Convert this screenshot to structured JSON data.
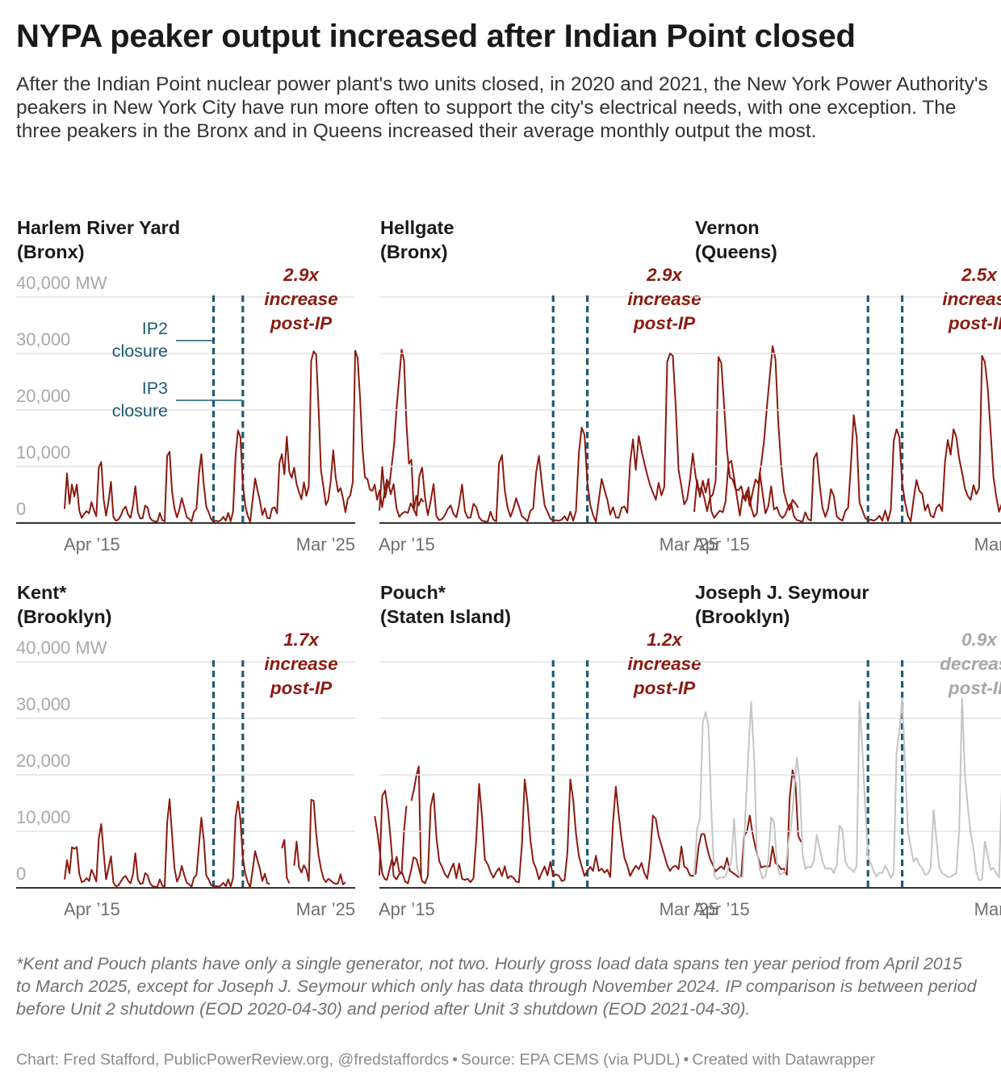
{
  "header": {
    "title": "NYPA peaker output increased after Indian Point closed",
    "description": "After the Indian Point nuclear power plant's two units closed, in 2020 and 2021, the New York Power Authority's peakers in New York City have run more often to support the city's electrical needs, with one exception. The three peakers in the Bronx and in Queens increased their average monthly output the most."
  },
  "footer": {
    "footnote": "*Kent and Pouch plants have only a single generator, not two. Hourly gross load data spans ten year period from April 2015 to March 2025, except for Joseph J. Seymour which only has data through November 2024. IP comparison is between period before Unit 2 shutdown (EOD 2020-04-30) and period after Unit 3 shutdown (EOD 2021-04-30).",
    "credit_parts": [
      "Chart: Fred Stafford, PublicPowerReview.org, @fredstaffordcs",
      "Source: EPA CEMS (via PUDL)",
      "Created with Datawrapper"
    ],
    "separator": "•"
  },
  "colors": {
    "increase_line": "#8b1a10",
    "decrease_line": "#c4c4c4",
    "decrease_text": "#a6a6a6",
    "marker": "#1d5b73",
    "grid": "#e2e2e2",
    "axis_text": "#a9a9a9"
  },
  "chart_data": {
    "type": "line",
    "layout": "small-multiples",
    "unit": "MW",
    "x_range": [
      "2015-04",
      "2025-03"
    ],
    "x_ticks": [
      "Apr ’15",
      "Mar ’25"
    ],
    "y_range": [
      0,
      40000
    ],
    "y_ticks": [
      0,
      10000,
      20000,
      30000,
      40000
    ],
    "y_tick_labels": [
      "0",
      "10,000",
      "20,000",
      "30,000",
      "40,000 MW"
    ],
    "markers": [
      {
        "label": "IP2\nclosure",
        "date": "2020-04-30"
      },
      {
        "label": "IP3\nclosure",
        "date": "2021-04-30"
      }
    ],
    "panels": [
      {
        "name": "Harlem River Yard",
        "borough": "(Bronx)",
        "trend": "increase",
        "annotation": [
          "2.9x",
          "increase",
          "post-IP"
        ],
        "values": [
          2500,
          8800,
          3400,
          6800,
          4700,
          6800,
          2200,
          900,
          1600,
          2100,
          1700,
          3700,
          2300,
          1200,
          9800,
          10800,
          4200,
          1300,
          3900,
          7300,
          1100,
          400,
          600,
          1300,
          2400,
          2900,
          1500,
          900,
          3100,
          6500,
          1900,
          800,
          900,
          3100,
          2700,
          900,
          400,
          300,
          200,
          1800,
          500,
          300,
          11900,
          12600,
          5600,
          2600,
          1000,
          2400,
          4400,
          2800,
          1100,
          700,
          300,
          2000,
          2500,
          8600,
          12200,
          6800,
          2900,
          1900,
          700,
          300,
          400,
          300,
          500,
          1100,
          400,
          1800,
          300,
          2000,
          11800,
          16400,
          15200,
          7000,
          3000,
          1300,
          200,
          4000,
          7900,
          5800,
          3900,
          1400,
          2600,
          900,
          800,
          2600,
          2800,
          1700,
          10700,
          12200,
          8600,
          15300,
          9100,
          8000,
          9800,
          6900,
          5500,
          4200,
          7200,
          4800,
          6500,
          28700,
          30400,
          29800,
          20500,
          9300,
          6400,
          3200,
          4100,
          7500,
          12900,
          8100,
          5500,
          6200,
          4400,
          1900,
          4300,
          4900,
          7300,
          30500,
          29200,
          22000,
          13100,
          8100,
          7800,
          5900,
          5700,
          6800,
          4100,
          5800,
          2800,
          5400,
          7700,
          6800,
          10400,
          14200,
          20600,
          25600,
          30700,
          28800,
          17600,
          10500,
          11200,
          2300,
          4800,
          3100,
          4300,
          3700
        ]
      },
      {
        "name": "Hellgate",
        "borough": "(Bronx)",
        "trend": "increase",
        "annotation": [
          "2.9x",
          "increase",
          "post-IP"
        ],
        "values": [
          2200,
          9900,
          4500,
          7200,
          5100,
          6900,
          2600,
          1100,
          1700,
          2000,
          1800,
          3500,
          2500,
          1300,
          8300,
          9800,
          4500,
          1400,
          3900,
          6900,
          1200,
          500,
          700,
          1400,
          2500,
          3100,
          1600,
          1000,
          3300,
          6800,
          2100,
          900,
          1000,
          3400,
          2800,
          1000,
          400,
          300,
          200,
          2000,
          600,
          300,
          10600,
          12000,
          5800,
          2700,
          1100,
          2500,
          4400,
          2900,
          1200,
          800,
          300,
          2200,
          2600,
          8900,
          11900,
          7100,
          3100,
          2000,
          800,
          400,
          500,
          400,
          600,
          1200,
          400,
          2000,
          400,
          2100,
          12400,
          16900,
          15600,
          7200,
          3200,
          1400,
          200,
          4100,
          7800,
          5900,
          4100,
          1500,
          2800,
          1000,
          900,
          2700,
          2900,
          1800,
          10800,
          14800,
          9400,
          15400,
          12800,
          10600,
          8500,
          6700,
          5400,
          4100,
          7100,
          4900,
          6400,
          28500,
          30000,
          29600,
          20600,
          9400,
          6500,
          3300,
          4200,
          7600,
          12300,
          8200,
          5700,
          6300,
          4500,
          2100,
          4500,
          5000,
          7400,
          29400,
          28300,
          20600,
          12800,
          8100,
          7700,
          6000,
          5800,
          6500,
          4300,
          5700,
          3000,
          5500,
          7700,
          7000,
          10400,
          14600,
          20500,
          25900,
          31300,
          29000,
          17800,
          10400,
          5500,
          3600,
          2300,
          4100,
          3500,
          2700
        ]
      },
      {
        "name": "Vernon",
        "borough": "(Queens)",
        "trend": "increase",
        "annotation": [
          "2.5x",
          "increase",
          "post-IP"
        ],
        "values": [
          2000,
          7600,
          4600,
          7500,
          5400,
          7800,
          2100,
          900,
          1600,
          2200,
          1900,
          3800,
          10500,
          11000,
          8000,
          4600,
          1300,
          4900,
          3900,
          6300,
          2700,
          1100,
          1700,
          9000,
          5200,
          1700,
          3000,
          6500,
          2400,
          2800,
          1400,
          900,
          1500,
          2900,
          3500,
          1200,
          500,
          400,
          200,
          1900,
          700,
          400,
          11400,
          12400,
          6900,
          2700,
          1100,
          2600,
          6000,
          4800,
          1200,
          700,
          400,
          2100,
          2700,
          10300,
          19100,
          15200,
          3600,
          2300,
          900,
          500,
          600,
          400,
          700,
          1300,
          400,
          2200,
          400,
          2300,
          14500,
          16600,
          15200,
          7000,
          3600,
          1300,
          300,
          4300,
          7600,
          5700,
          5200,
          2200,
          3300,
          1300,
          1000,
          2700,
          3300,
          2100,
          10800,
          14700,
          12100,
          16600,
          15200,
          11400,
          8900,
          6100,
          4800,
          4100,
          6700,
          5100,
          6200,
          29600,
          28500,
          24000,
          16300,
          8200,
          4700,
          2000,
          3500,
          5900,
          10400,
          6800,
          5100,
          4500,
          3700,
          1500,
          3700,
          4000,
          7700,
          30900,
          25800,
          20100,
          19800,
          null,
          null,
          null,
          null,
          null,
          null,
          null,
          null,
          null,
          null,
          null,
          2400,
          6800,
          7700,
          7600,
          11600,
          17300,
          24300,
          31500,
          26900,
          16300,
          12700,
          12400,
          4300,
          3400,
          4900,
          10900,
          2700
        ]
      },
      {
        "name": "Kent*",
        "borough": "(Brooklyn)",
        "trend": "increase",
        "annotation": [
          "1.7x",
          "increase",
          "post-IP"
        ],
        "values": [
          1500,
          4900,
          2600,
          7200,
          6900,
          7200,
          2500,
          1000,
          1200,
          1700,
          1200,
          3200,
          2300,
          1100,
          8800,
          11300,
          6300,
          1500,
          3500,
          5600,
          900,
          300,
          400,
          1100,
          1800,
          2100,
          1300,
          800,
          2400,
          6100,
          1500,
          700,
          800,
          2600,
          2200,
          800,
          300,
          200,
          200,
          1500,
          400,
          200,
          11600,
          15700,
          9400,
          3500,
          1100,
          2000,
          3900,
          2300,
          900,
          600,
          200,
          1800,
          2300,
          7400,
          12400,
          8600,
          2200,
          1500,
          500,
          300,
          300,
          200,
          400,
          900,
          300,
          1500,
          200,
          1700,
          12500,
          15300,
          12100,
          5400,
          2500,
          1000,
          100,
          3100,
          6500,
          4900,
          3300,
          1200,
          2500,
          800,
          700,
          null,
          null,
          null,
          null,
          7000,
          8500,
          1800,
          800,
          null,
          3900,
          8200,
          3700,
          2700,
          4000,
          3200,
          1200,
          15600,
          15400,
          9700,
          5800,
          3400,
          1700,
          1000,
          1600,
          1300,
          900,
          700,
          800,
          2400,
          600,
          1000,
          null,
          null,
          null,
          null,
          null,
          null,
          null,
          null,
          null,
          null,
          null,
          12700,
          10100,
          6600,
          2700,
          1600,
          1400,
          3200,
          5000,
          4000,
          5500,
          2900,
          2500,
          10100,
          14500,
          null,
          15400,
          17300,
          19700,
          21500,
          1700
        ]
      },
      {
        "name": "Pouch*",
        "borough": "(Staten Island)",
        "trend": "increase",
        "annotation": [
          "1.2x",
          "increase",
          "post-IP"
        ],
        "values": [
          2200,
          16300,
          17200,
          13700,
          8300,
          2100,
          1500,
          2500,
          2700,
          1100,
          800,
          2800,
          5400,
          5100,
          3200,
          1200,
          800,
          2100,
          14400,
          16700,
          9000,
          4700,
          3700,
          2400,
          1800,
          3200,
          4300,
          1700,
          4300,
          1600,
          1400,
          1600,
          1000,
          1700,
          8700,
          18400,
          12600,
          5000,
          4200,
          2800,
          1800,
          2800,
          3500,
          2100,
          3800,
          1700,
          2100,
          1800,
          1100,
          1000,
          7600,
          19200,
          14900,
          8400,
          4600,
          3400,
          1500,
          2700,
          3800,
          2200,
          4600,
          2000,
          2400,
          2100,
          1200,
          1400,
          6200,
          19200,
          15700,
          9600,
          5600,
          3800,
          2100,
          3000,
          3700,
          3000,
          5700,
          3000,
          3400,
          2700,
          3200,
          1900,
          11700,
          17900,
          12800,
          8600,
          5300,
          3900,
          2100,
          3100,
          3900,
          3300,
          4400,
          2600,
          1600,
          5700,
          12800,
          12200,
          9200,
          7500,
          5800,
          4000,
          3000,
          3700,
          3900,
          3300,
          7300,
          3800,
          3400,
          2200,
          2100,
          2500,
          7200,
          9500,
          9500,
          7100,
          5200,
          4100,
          2900,
          3400,
          3800,
          3300,
          5300,
          3000,
          2700,
          2300,
          1900,
          2000,
          9100,
          10000,
          12800,
          9500,
          7100,
          5300,
          3600,
          3800,
          3800,
          3800,
          7300,
          4400,
          4000,
          3300,
          3400,
          2300,
          15900,
          20800,
          18700,
          9200,
          8100
        ]
      },
      {
        "name": "Joseph J. Seymour",
        "borough": "(Brooklyn)",
        "trend": "decrease",
        "annotation": [
          "0.9x",
          "decrease",
          "post-IP"
        ],
        "values": [
          2000,
          10300,
          12300,
          29300,
          31100,
          28700,
          13800,
          2300,
          1500,
          1900,
          1800,
          2000,
          3600,
          4400,
          12200,
          3600,
          1800,
          2000,
          13500,
          24100,
          32900,
          23300,
          6800,
          3200,
          1700,
          2000,
          5100,
          12500,
          11700,
          4400,
          2300,
          2600,
          2900,
          8000,
          10900,
          16700,
          23100,
          18700,
          6100,
          3300,
          3800,
          3600,
          4700,
          9400,
          7000,
          4700,
          3400,
          3400,
          3500,
          2600,
          4000,
          11000,
          10300,
          4700,
          3700,
          3300,
          2800,
          3900,
          33000,
          24600,
          14300,
          5600,
          4300,
          2900,
          2000,
          2700,
          2600,
          3900,
          3000,
          1700,
          2800,
          23900,
          27700,
          33600,
          21900,
          10100,
          7200,
          4600,
          5300,
          4100,
          3500,
          2300,
          2500,
          3500,
          13800,
          8600,
          3600,
          2600,
          2300,
          1900,
          2000,
          2300,
          2600,
          10300,
          33500,
          20300,
          14400,
          9800,
          7000,
          2700,
          1300,
          1500,
          8200,
          5700,
          3200,
          3500,
          2600,
          1800,
          18400,
          26400,
          27400,
          19000,
          11300,
          8500,
          3500,
          2900,
          4200,
          3500,
          3600,
          3000,
          8800,
          13800,
          5700,
          4400,
          2600,
          1900,
          2000,
          3800,
          12000,
          16100,
          9700,
          5500,
          2700,
          3400,
          2300,
          5700,
          16800,
          21700,
          25600,
          28600,
          18900,
          13500,
          9300,
          5500,
          2000
        ]
      }
    ]
  }
}
